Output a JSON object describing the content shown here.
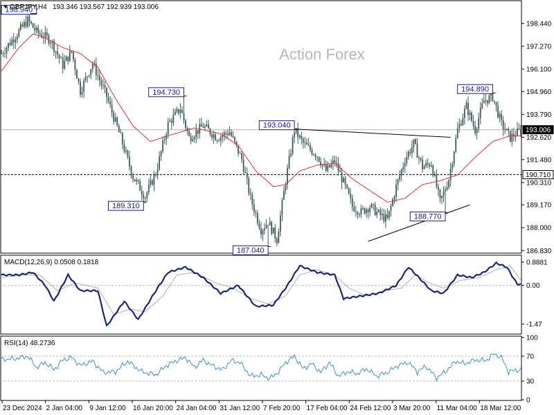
{
  "header": {
    "symbol": "GBPJPY,H4",
    "ohlc": "193.346 193.567 192.939 193.006"
  },
  "watermark": "Action Forex",
  "colors": {
    "candles": "#3c5a5a",
    "ma": "#e03030",
    "annotation": "#1a1a8c",
    "macd": "#1a237e",
    "signal": "#b0b0b0",
    "rsi": "#3a8fd0",
    "grid": "#b8b8b8"
  },
  "chart_data": [
    {
      "type": "line",
      "name": "price-panel",
      "yticks": [
        186.83,
        188.0,
        189.17,
        190.31,
        191.48,
        192.62,
        193.79,
        194.96,
        196.1,
        197.27,
        198.44
      ],
      "ytick_labels": [
        "186.830",
        "188.000",
        "189.170",
        "190.310",
        "191.480",
        "192.620",
        "193.790",
        "194.960",
        "196.100",
        "197.270",
        "198.440"
      ],
      "ylim": [
        186.7,
        199.6
      ],
      "x_labels": [
        "23 Dec 2024",
        "2 Jan 04:00",
        "9 Jan 12:00",
        "16 Jan 20:00",
        "24 Jan 04:00",
        "31 Jan 12:00",
        "7 Feb 20:00",
        "17 Feb 04:00",
        "24 Feb 12:00",
        "3 Mar 20:00",
        "11 Mar 04:00",
        "18 Mar 12:00"
      ],
      "n_bars": 297,
      "price_path": [
        [
          0,
          196.9
        ],
        [
          15,
          198.6
        ],
        [
          20,
          198.0
        ],
        [
          28,
          197.6
        ],
        [
          35,
          196.3
        ],
        [
          40,
          197.0
        ],
        [
          45,
          195.0
        ],
        [
          52,
          196.4
        ],
        [
          60,
          194.7
        ],
        [
          68,
          192.6
        ],
        [
          75,
          190.6
        ],
        [
          82,
          189.6
        ],
        [
          88,
          190.8
        ],
        [
          95,
          193.3
        ],
        [
          102,
          194.1
        ],
        [
          107,
          192.6
        ],
        [
          115,
          193.2
        ],
        [
          123,
          192.6
        ],
        [
          130,
          192.9
        ],
        [
          137,
          191.5
        ],
        [
          142,
          189.5
        ],
        [
          148,
          187.9
        ],
        [
          152,
          188.3
        ],
        [
          157,
          187.4
        ],
        [
          162,
          190.4
        ],
        [
          167,
          193.0
        ],
        [
          172,
          192.3
        ],
        [
          180,
          191.7
        ],
        [
          185,
          190.9
        ],
        [
          190,
          191.4
        ],
        [
          195,
          190.3
        ],
        [
          200,
          189.1
        ],
        [
          205,
          188.8
        ],
        [
          210,
          189.1
        ],
        [
          215,
          188.7
        ],
        [
          220,
          188.4
        ],
        [
          225,
          190.1
        ],
        [
          230,
          191.5
        ],
        [
          235,
          192.3
        ],
        [
          240,
          191.1
        ],
        [
          245,
          191.3
        ],
        [
          250,
          189.3
        ],
        [
          255,
          190.5
        ],
        [
          260,
          193.0
        ],
        [
          265,
          194.2
        ],
        [
          270,
          193.0
        ],
        [
          275,
          194.5
        ],
        [
          280,
          194.7
        ],
        [
          285,
          193.3
        ],
        [
          290,
          192.6
        ],
        [
          296,
          193.0
        ]
      ],
      "ma_path": [
        [
          0,
          196.0
        ],
        [
          10,
          197.2
        ],
        [
          18,
          197.9
        ],
        [
          25,
          197.7
        ],
        [
          35,
          197.2
        ],
        [
          45,
          196.9
        ],
        [
          55,
          196.2
        ],
        [
          65,
          194.6
        ],
        [
          75,
          193.2
        ],
        [
          85,
          192.4
        ],
        [
          95,
          192.7
        ],
        [
          110,
          193.1
        ],
        [
          125,
          192.8
        ],
        [
          135,
          192.2
        ],
        [
          145,
          190.9
        ],
        [
          155,
          190.1
        ],
        [
          162,
          190.2
        ],
        [
          170,
          190.9
        ],
        [
          180,
          191.2
        ],
        [
          190,
          191.3
        ],
        [
          200,
          190.5
        ],
        [
          210,
          189.9
        ],
        [
          220,
          189.3
        ],
        [
          230,
          189.5
        ],
        [
          240,
          190.2
        ],
        [
          250,
          190.4
        ],
        [
          260,
          190.7
        ],
        [
          270,
          191.6
        ],
        [
          280,
          192.4
        ],
        [
          290,
          192.7
        ],
        [
          296,
          192.7
        ]
      ],
      "annotations": [
        {
          "label": "198.940",
          "bar": 15,
          "value": 198.94
        },
        {
          "label": "194.730",
          "bar": 104,
          "value": 194.73
        },
        {
          "label": "193.040",
          "bar": 167,
          "value": 193.04
        },
        {
          "label": "189.310",
          "bar": 81,
          "value": 189.31
        },
        {
          "label": "187.040",
          "bar": 152,
          "value": 187.04
        },
        {
          "label": "188.770",
          "bar": 253,
          "value": 188.77
        },
        {
          "label": "194.890",
          "bar": 280,
          "value": 194.89
        }
      ],
      "trendlines": [
        {
          "from": [
            167,
            193.04
          ],
          "to": [
            256,
            192.62
          ]
        },
        {
          "from": [
            209,
            187.3
          ],
          "to": [
            267,
            189.17
          ]
        }
      ],
      "hlines": [
        {
          "value": 193.006,
          "label": "193.006",
          "style": "solid",
          "marker": "black-box"
        },
        {
          "value": 190.71,
          "label": "190.710",
          "style": "dashed",
          "marker": "outline-box"
        }
      ]
    },
    {
      "type": "line",
      "name": "macd-panel",
      "title": "MACD(12,26,9) 0.0508 0.1818",
      "yticks": [
        0.8881,
        0.0,
        -1.47
      ],
      "ytick_labels": [
        "0.8881",
        "0.00",
        "-1.47"
      ],
      "ylim": [
        -1.8,
        1.1
      ],
      "macd_path": [
        [
          0,
          0.4
        ],
        [
          10,
          0.4
        ],
        [
          18,
          0.5
        ],
        [
          25,
          0.0
        ],
        [
          30,
          -0.6
        ],
        [
          38,
          0.4
        ],
        [
          45,
          -0.2
        ],
        [
          55,
          -0.2
        ],
        [
          60,
          -1.55
        ],
        [
          70,
          -0.6
        ],
        [
          78,
          -1.3
        ],
        [
          88,
          -0.2
        ],
        [
          95,
          0.5
        ],
        [
          100,
          0.6
        ],
        [
          105,
          0.7
        ],
        [
          115,
          0.3
        ],
        [
          125,
          -0.3
        ],
        [
          135,
          0.0
        ],
        [
          145,
          -0.8
        ],
        [
          155,
          -0.75
        ],
        [
          163,
          0.0
        ],
        [
          170,
          0.75
        ],
        [
          180,
          0.5
        ],
        [
          190,
          0.4
        ],
        [
          195,
          -0.5
        ],
        [
          205,
          -0.4
        ],
        [
          215,
          -0.3
        ],
        [
          225,
          0.0
        ],
        [
          232,
          0.7
        ],
        [
          238,
          0.3
        ],
        [
          245,
          -0.2
        ],
        [
          252,
          -0.3
        ],
        [
          260,
          0.4
        ],
        [
          268,
          0.3
        ],
        [
          275,
          0.5
        ],
        [
          282,
          0.85
        ],
        [
          288,
          0.7
        ],
        [
          294,
          0.05
        ]
      ],
      "signal_path": [
        [
          0,
          0.3
        ],
        [
          12,
          0.4
        ],
        [
          22,
          0.4
        ],
        [
          32,
          -0.2
        ],
        [
          42,
          0.1
        ],
        [
          55,
          -0.1
        ],
        [
          64,
          -1.1
        ],
        [
          74,
          -0.9
        ],
        [
          82,
          -1.0
        ],
        [
          92,
          -0.4
        ],
        [
          100,
          0.4
        ],
        [
          110,
          0.5
        ],
        [
          122,
          0.1
        ],
        [
          132,
          -0.1
        ],
        [
          142,
          -0.5
        ],
        [
          152,
          -0.7
        ],
        [
          162,
          -0.4
        ],
        [
          170,
          0.4
        ],
        [
          180,
          0.6
        ],
        [
          190,
          0.4
        ],
        [
          198,
          -0.1
        ],
        [
          208,
          -0.4
        ],
        [
          218,
          -0.2
        ],
        [
          228,
          -0.1
        ],
        [
          236,
          0.4
        ],
        [
          244,
          0.1
        ],
        [
          252,
          -0.1
        ],
        [
          262,
          0.2
        ],
        [
          272,
          0.3
        ],
        [
          282,
          0.6
        ],
        [
          290,
          0.75
        ],
        [
          296,
          0.2
        ]
      ]
    },
    {
      "type": "line",
      "name": "rsi-panel",
      "title": "RSI(14) 48.2736",
      "yticks": [
        100,
        70,
        30,
        0
      ],
      "ytick_labels": [
        "100",
        "70",
        "30",
        "0"
      ],
      "ylim": [
        0,
        100
      ],
      "levels": [
        70,
        30
      ],
      "rsi_path": [
        [
          0,
          65
        ],
        [
          8,
          66
        ],
        [
          15,
          70
        ],
        [
          20,
          52
        ],
        [
          25,
          60
        ],
        [
          30,
          48
        ],
        [
          35,
          64
        ],
        [
          40,
          68
        ],
        [
          45,
          55
        ],
        [
          52,
          62
        ],
        [
          58,
          44
        ],
        [
          65,
          45
        ],
        [
          72,
          62
        ],
        [
          80,
          45
        ],
        [
          88,
          40
        ],
        [
          94,
          55
        ],
        [
          100,
          63
        ],
        [
          105,
          68
        ],
        [
          110,
          52
        ],
        [
          115,
          64
        ],
        [
          120,
          55
        ],
        [
          126,
          48
        ],
        [
          131,
          63
        ],
        [
          136,
          60
        ],
        [
          142,
          38
        ],
        [
          148,
          40
        ],
        [
          153,
          34
        ],
        [
          158,
          45
        ],
        [
          162,
          60
        ],
        [
          167,
          70
        ],
        [
          172,
          50
        ],
        [
          177,
          58
        ],
        [
          182,
          44
        ],
        [
          187,
          60
        ],
        [
          192,
          38
        ],
        [
          197,
          45
        ],
        [
          203,
          42
        ],
        [
          208,
          50
        ],
        [
          214,
          38
        ],
        [
          220,
          44
        ],
        [
          226,
          55
        ],
        [
          232,
          60
        ],
        [
          237,
          45
        ],
        [
          242,
          54
        ],
        [
          248,
          35
        ],
        [
          253,
          45
        ],
        [
          259,
          62
        ],
        [
          264,
          58
        ],
        [
          270,
          64
        ],
        [
          276,
          63
        ],
        [
          281,
          74
        ],
        [
          285,
          68
        ],
        [
          289,
          45
        ],
        [
          294,
          48
        ]
      ]
    }
  ]
}
